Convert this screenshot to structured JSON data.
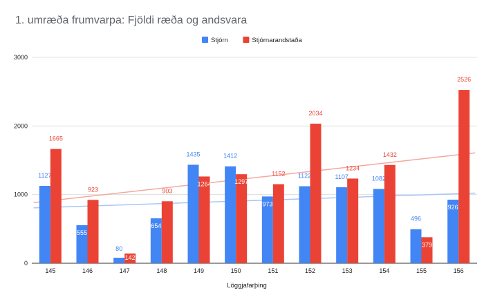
{
  "chart_data": {
    "type": "bar",
    "title": "1. umræða frumvarpa: Fjöldi ræða og andsvara",
    "xlabel": "Löggjafarþing",
    "ylabel": "",
    "ylim": [
      0,
      3000
    ],
    "yticks": [
      0,
      1000,
      2000,
      3000
    ],
    "grid": true,
    "legend_position": "top",
    "categories": [
      "145",
      "146",
      "147",
      "148",
      "149",
      "150",
      "151",
      "152",
      "153",
      "154",
      "155",
      "156"
    ],
    "series": [
      {
        "name": "Stjórn",
        "color": "#4285f4",
        "trendline_color": "#a8c6f7",
        "values": [
          1127,
          555,
          80,
          654,
          1435,
          1412,
          973,
          1122,
          1107,
          1082,
          496,
          926
        ]
      },
      {
        "name": "Stjórnarandstaða",
        "color": "#ea4335",
        "trendline_color": "#f4a79f",
        "values": [
          1665,
          923,
          142,
          903,
          1264,
          1297,
          1152,
          2034,
          1234,
          1432,
          379,
          2526
        ]
      }
    ],
    "trendlines": true
  }
}
